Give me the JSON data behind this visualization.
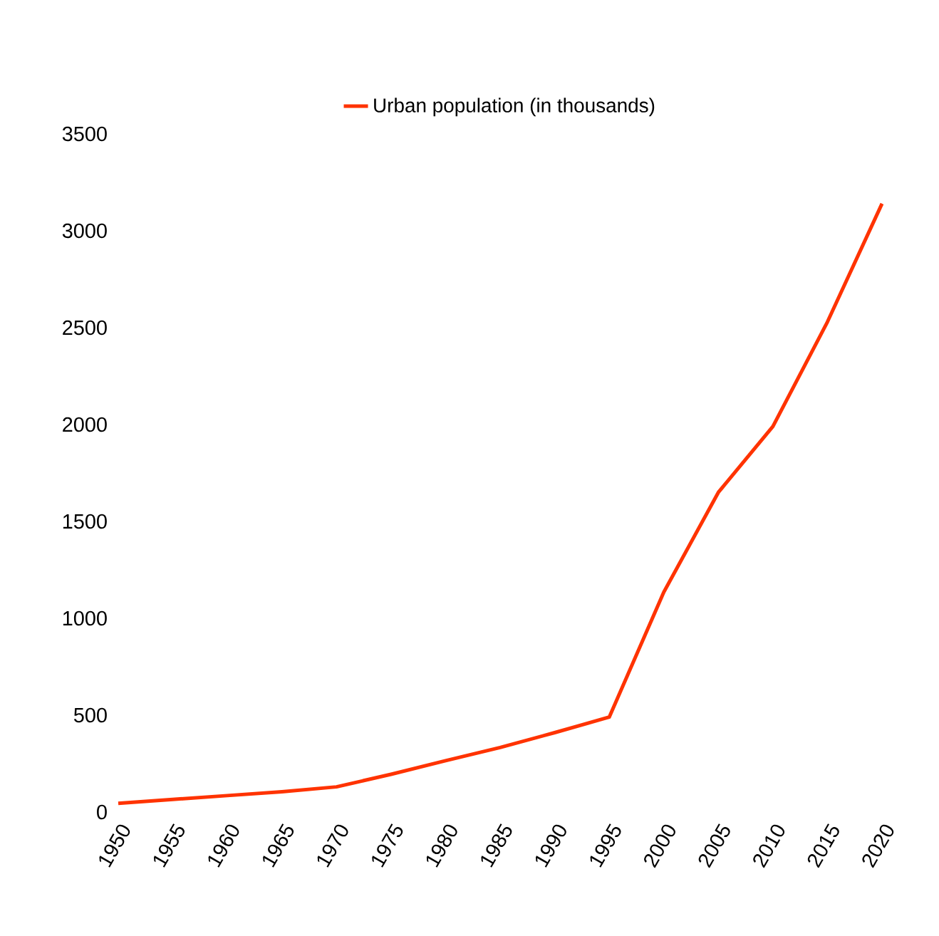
{
  "chart_data": {
    "type": "line",
    "categories": [
      "1950",
      "1955",
      "1960",
      "1965",
      "1970",
      "1975",
      "1980",
      "1985",
      "1990",
      "1995",
      "2000",
      "2005",
      "2010",
      "2015",
      "2020"
    ],
    "series": [
      {
        "name": "Urban population (in thousands)",
        "color": "#ff3300",
        "values": [
          45,
          65,
          85,
          105,
          130,
          195,
          265,
          333,
          410,
          490,
          1135,
          1650,
          1990,
          2530,
          3140
        ]
      }
    ],
    "ylim": [
      0,
      3500
    ],
    "yticks": [
      0,
      500,
      1000,
      1500,
      2000,
      2500,
      3000,
      3500
    ],
    "legend": "top",
    "grid": false,
    "marker": "none",
    "line_style": "solid"
  }
}
